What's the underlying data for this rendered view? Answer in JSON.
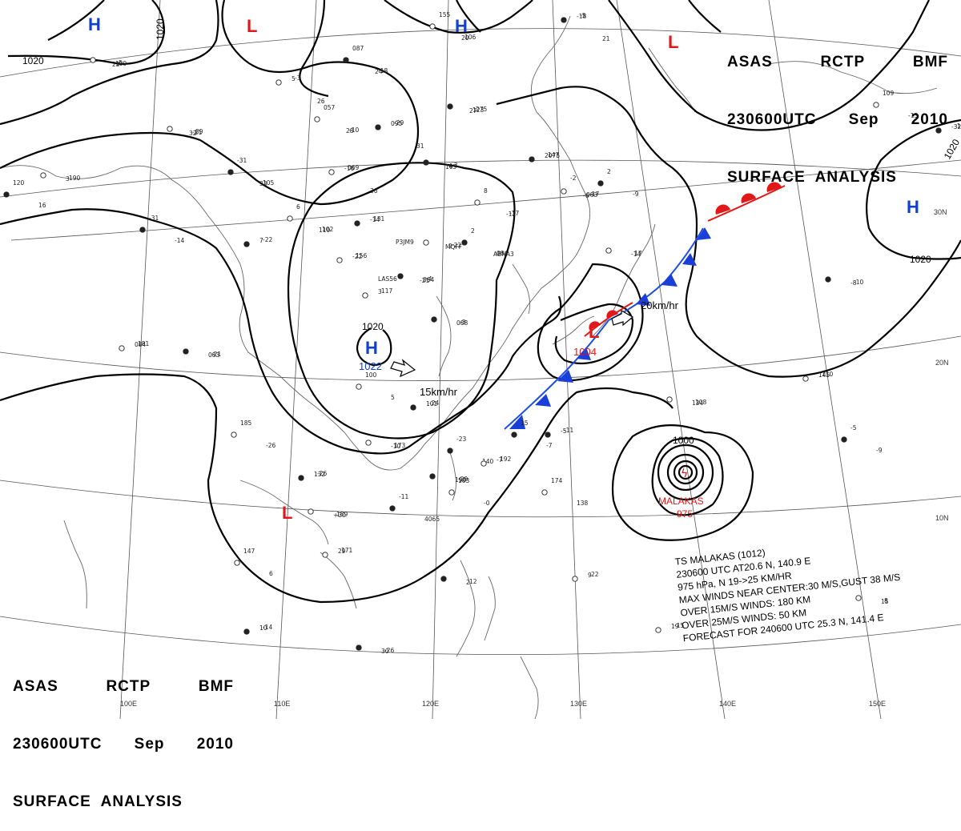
{
  "header": {
    "agency": "ASAS",
    "station": "RCTP",
    "office": "BMF",
    "time": "230600UTC",
    "month": "Sep",
    "year": "2010",
    "title": "SURFACE  ANALYSIS"
  },
  "pressure_centers": [
    {
      "type": "H",
      "color": "#1040d0",
      "value": ""
    },
    {
      "type": "H",
      "color": "#1040d0",
      "value": ""
    },
    {
      "type": "H",
      "color": "#1040d0",
      "value": "1022"
    },
    {
      "type": "H",
      "color": "#1040d0",
      "value": ""
    },
    {
      "type": "L",
      "color": "#e01818",
      "value": ""
    },
    {
      "type": "L",
      "color": "#e01818",
      "value": ""
    },
    {
      "type": "L",
      "color": "#e01818",
      "value": ""
    },
    {
      "type": "L",
      "color": "#e01818",
      "value": "1004"
    }
  ],
  "isobar_labels": [
    "1020",
    "1020",
    "1020",
    "1020",
    "1020",
    "1000"
  ],
  "motion": [
    {
      "label": "15km/hr"
    },
    {
      "label": "20km/hr"
    }
  ],
  "storm": {
    "name": "MALAKAS",
    "pressure": "975",
    "color": "#e01818"
  },
  "lat_labels": [
    "30N",
    "20N",
    "10N"
  ],
  "lon_labels": [
    "100E",
    "110E",
    "120E",
    "130E",
    "140E",
    "150E"
  ],
  "storm_info": {
    "line1": "TS  MALAKAS  (1012)",
    "line2": "230600 UTC  AT20.6 N, 140.9 E",
    "line3": "975 hPa, N  19->25 KM/HR",
    "line4": "MAX WINDS NEAR CENTER:30 M/S,GUST 38 M/S",
    "line5": "OVER 15M/S WINDS: 180 KM",
    "line6": "OVER 25M/S WINDS: 50 KM",
    "line7": "FORECAST FOR 240600 UTC 25.3 N, 141.4 E"
  },
  "station_obs": [
    "155",
    "-5",
    "5",
    "087",
    "-3",
    "275",
    "057",
    "-29",
    "09",
    "-31",
    "069",
    "-3",
    "6",
    "131",
    "-22",
    "2",
    "156",
    "-4",
    "8",
    "147",
    "-17",
    "2",
    "117",
    "-3",
    "100",
    "-24",
    "173",
    "-23",
    "192",
    "-29",
    "183",
    "-26",
    "189",
    "-11",
    "171",
    "-26",
    "174",
    "-11",
    "108",
    "-5",
    "110",
    "-10",
    "109",
    "-1",
    "190",
    "-31",
    "181",
    "-21",
    "185",
    "-22",
    "17",
    "15",
    "22",
    "12",
    "147",
    "-14",
    "8",
    "120",
    "-15",
    "106",
    "-18",
    "109",
    "-18",
    "5",
    "123",
    "-10",
    "095",
    "-21",
    "105",
    "-16",
    "4",
    "102",
    "-14",
    "2",
    "084",
    "-22",
    "064",
    "-17",
    "2075",
    "083",
    "-9",
    "3",
    "088",
    "5",
    "101",
    "-10",
    "140",
    "-7",
    "190",
    "-0",
    "132",
    "+30",
    "4065",
    "29",
    "30",
    "138",
    "-5",
    "134",
    "-9",
    "145",
    "-8",
    "-13",
    "-32",
    "3",
    "-14",
    "084",
    "083",
    "-26",
    "7",
    "-14",
    "-7",
    "9",
    "2",
    "6",
    "10",
    "15",
    "16",
    "19",
    "20",
    "21",
    "23",
    "24",
    "26",
    "27",
    "28",
    "31",
    "32",
    "33",
    "36",
    "165",
    "110",
    "P3JM9",
    "MQFF",
    "ABNA3",
    "LAS56",
    "-21",
    "-12",
    "-2",
    "-6"
  ]
}
